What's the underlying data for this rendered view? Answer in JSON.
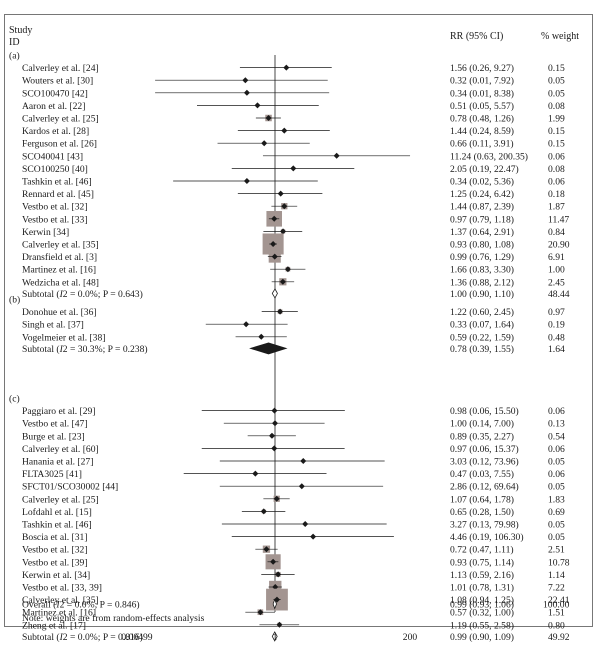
{
  "chart_data": {
    "type": "forest",
    "header": {
      "study": "Study",
      "id": "ID",
      "rr": "RR (95% CI)",
      "weight": "% weight"
    },
    "x_axis": {
      "scale": "log",
      "min": 0.00499,
      "max": 200,
      "ticks": [
        "0.00499",
        "1",
        "200"
      ]
    },
    "footnote": "Note: weights are from random-effects analysis",
    "groups": [
      {
        "label": "(a)",
        "studies": [
          {
            "name": "Calverley et al. [24]",
            "rr": 1.56,
            "lo": 0.26,
            "hi": 9.27,
            "ci": "1.56 (0.26, 9.27)",
            "weight": "0.15"
          },
          {
            "name": "Wouters et al. [30]",
            "rr": 0.32,
            "lo": 0.01,
            "hi": 7.92,
            "ci": "0.32 (0.01, 7.92)",
            "weight": "0.05"
          },
          {
            "name": "SCO100470 [42]",
            "rr": 0.34,
            "lo": 0.01,
            "hi": 8.38,
            "ci": "0.34 (0.01, 8.38)",
            "weight": "0.05"
          },
          {
            "name": "Aaron et al. [22]",
            "rr": 0.51,
            "lo": 0.05,
            "hi": 5.57,
            "ci": "0.51 (0.05, 5.57)",
            "weight": "0.08"
          },
          {
            "name": "Calverley et al. [25]",
            "rr": 0.78,
            "lo": 0.48,
            "hi": 1.26,
            "ci": "0.78 (0.48, 1.26)",
            "weight": "1.99"
          },
          {
            "name": "Kardos et al. [28]",
            "rr": 1.44,
            "lo": 0.24,
            "hi": 8.59,
            "ci": "1.44 (0.24, 8.59)",
            "weight": "0.15"
          },
          {
            "name": "Ferguson et al. [26]",
            "rr": 0.66,
            "lo": 0.11,
            "hi": 3.91,
            "ci": "0.66 (0.11, 3.91)",
            "weight": "0.15"
          },
          {
            "name": "SCO40041 [43]",
            "rr": 11.24,
            "lo": 0.63,
            "hi": 200.35,
            "ci": "11.24 (0.63, 200.35)",
            "weight": "0.06"
          },
          {
            "name": "SCO100250 [40]",
            "rr": 2.05,
            "lo": 0.19,
            "hi": 22.47,
            "ci": "2.05 (0.19, 22.47)",
            "weight": "0.08"
          },
          {
            "name": "Tashkin et al. [46]",
            "rr": 0.34,
            "lo": 0.02,
            "hi": 5.36,
            "ci": "0.34 (0.02, 5.36)",
            "weight": "0.06"
          },
          {
            "name": "Rennard et al. [45]",
            "rr": 1.25,
            "lo": 0.24,
            "hi": 6.42,
            "ci": "1.25 (0.24, 6.42)",
            "weight": "0.18"
          },
          {
            "name": "Vestbo et al. [32]",
            "rr": 1.44,
            "lo": 0.87,
            "hi": 2.39,
            "ci": "1.44 (0.87, 2.39)",
            "weight": "1.87"
          },
          {
            "name": "Vestbo et al. [33]",
            "rr": 0.97,
            "lo": 0.79,
            "hi": 1.18,
            "ci": "0.97 (0.79, 1.18)",
            "weight": "11.47"
          },
          {
            "name": "Kerwin [34]",
            "rr": 1.37,
            "lo": 0.64,
            "hi": 2.91,
            "ci": "1.37 (0.64, 2.91)",
            "weight": "0.84"
          },
          {
            "name": "Calverley et al. [35]",
            "rr": 0.93,
            "lo": 0.8,
            "hi": 1.08,
            "ci": "0.93 (0.80, 1.08)",
            "weight": "20.90"
          },
          {
            "name": "Dransfield et al. [3]",
            "rr": 0.99,
            "lo": 0.76,
            "hi": 1.29,
            "ci": "0.99 (0.76, 1.29)",
            "weight": "6.91"
          },
          {
            "name": "Martinez et al. [16]",
            "rr": 1.66,
            "lo": 0.83,
            "hi": 3.3,
            "ci": "1.66 (0.83, 3.30)",
            "weight": "1.00"
          },
          {
            "name": "Wedzicha et al. [48]",
            "rr": 1.36,
            "lo": 0.88,
            "hi": 2.12,
            "ci": "1.36 (0.88, 2.12)",
            "weight": "2.45"
          }
        ],
        "subtotal": {
          "label_pre": "Subtotal (",
          "i2": "I",
          "label_post": "2 = 0.0%; P = 0.643)",
          "rr": 1.0,
          "lo": 0.9,
          "hi": 1.1,
          "ci": "1.00 (0.90, 1.10)",
          "weight": "48.44",
          "fill": "none"
        }
      },
      {
        "label": "(b)",
        "studies": [
          {
            "name": "Donohue et al. [36]",
            "rr": 1.22,
            "lo": 0.6,
            "hi": 2.45,
            "ci": "1.22 (0.60, 2.45)",
            "weight": "0.97"
          },
          {
            "name": "Singh et al. [37]",
            "rr": 0.33,
            "lo": 0.07,
            "hi": 1.64,
            "ci": "0.33 (0.07, 1.64)",
            "weight": "0.19"
          },
          {
            "name": "Vogelmeier et al. [38]",
            "rr": 0.59,
            "lo": 0.22,
            "hi": 1.59,
            "ci": "0.59 (0.22, 1.59)",
            "weight": "0.48"
          }
        ],
        "subtotal": {
          "label_pre": "Subtotal (",
          "i2": "I",
          "label_post": "2 = 30.3%; P = 0.238)",
          "rr": 0.78,
          "lo": 0.39,
          "hi": 1.55,
          "ci": "0.78 (0.39, 1.55)",
          "weight": "1.64",
          "fill": "black"
        }
      },
      {
        "label": "(c)",
        "studies": [
          {
            "name": "Paggiaro et al. [29]",
            "rr": 0.98,
            "lo": 0.06,
            "hi": 15.5,
            "ci": "0.98 (0.06, 15.50)",
            "weight": "0.06"
          },
          {
            "name": "Vestbo et al. [47]",
            "rr": 1.0,
            "lo": 0.14,
            "hi": 7.0,
            "ci": "1.00 (0.14, 7.00)",
            "weight": "0.13"
          },
          {
            "name": "Burge et al. [23]",
            "rr": 0.89,
            "lo": 0.35,
            "hi": 2.27,
            "ci": "0.89 (0.35, 2.27)",
            "weight": "0.54"
          },
          {
            "name": "Calverley et al. [60]",
            "rr": 0.97,
            "lo": 0.06,
            "hi": 15.37,
            "ci": "0.97 (0.06, 15.37)",
            "weight": "0.06"
          },
          {
            "name": "Hanania et al. [27]",
            "rr": 3.03,
            "lo": 0.12,
            "hi": 73.96,
            "ci": "3.03 (0.12, 73.96)",
            "weight": "0.05"
          },
          {
            "name": "FLTA3025 [41]",
            "rr": 0.47,
            "lo": 0.03,
            "hi": 7.55,
            "ci": "0.47 (0.03, 7.55)",
            "weight": "0.06"
          },
          {
            "name": "SFCT01/SCO30002 [44]",
            "rr": 2.86,
            "lo": 0.12,
            "hi": 69.64,
            "ci": "2.86 (0.12, 69.64)",
            "weight": "0.05"
          },
          {
            "name": "Calverley et al. [25]",
            "rr": 1.07,
            "lo": 0.64,
            "hi": 1.78,
            "ci": "1.07 (0.64, 1.78)",
            "weight": "1.83"
          },
          {
            "name": "Lofdahl et al. [15]",
            "rr": 0.65,
            "lo": 0.28,
            "hi": 1.5,
            "ci": "0.65 (0.28, 1.50)",
            "weight": "0.69"
          },
          {
            "name": "Tashkin et al. [46]",
            "rr": 3.27,
            "lo": 0.13,
            "hi": 79.98,
            "ci": "3.27 (0.13, 79.98)",
            "weight": "0.05"
          },
          {
            "name": "Boscia et al. [31]",
            "rr": 4.46,
            "lo": 0.19,
            "hi": 106.3,
            "ci": "4.46 (0.19, 106.30)",
            "weight": "0.05"
          },
          {
            "name": "Vestbo et al. [32]",
            "rr": 0.72,
            "lo": 0.47,
            "hi": 1.11,
            "ci": "0.72 (0.47, 1.11)",
            "weight": "2.51"
          },
          {
            "name": "Vestbo et al. [39]",
            "rr": 0.93,
            "lo": 0.75,
            "hi": 1.14,
            "ci": "0.93 (0.75, 1.14)",
            "weight": "10.78"
          },
          {
            "name": "Kerwin et al. [34]",
            "rr": 1.13,
            "lo": 0.59,
            "hi": 2.16,
            "ci": "1.13 (0.59, 2.16)",
            "weight": "1.14"
          },
          {
            "name": "Vestbo et al. [33, 39]",
            "rr": 1.01,
            "lo": 0.78,
            "hi": 1.31,
            "ci": "1.01 (0.78, 1.31)",
            "weight": "7.22"
          },
          {
            "name": "Calverley et al. [35]",
            "rr": 1.08,
            "lo": 0.94,
            "hi": 1.25,
            "ci": "1.08 (0.94, 1.25)",
            "weight": "22.41"
          },
          {
            "name": "Martinez et al. [16]",
            "rr": 0.57,
            "lo": 0.32,
            "hi": 1.0,
            "ci": "0.57 (0.32, 1.00)",
            "weight": "1.51"
          },
          {
            "name": "Zheng et al. [17]",
            "rr": 1.19,
            "lo": 0.55,
            "hi": 2.58,
            "ci": "1.19 (0.55, 2.58)",
            "weight": "0.80"
          }
        ],
        "subtotal": {
          "label_pre": "Subtotal (",
          "i2": "I",
          "label_post": "2 = 0.0%; P = 0.816)",
          "rr": 0.99,
          "lo": 0.9,
          "hi": 1.09,
          "ci": "0.99 (0.90, 1.09)",
          "weight": "49.92",
          "fill": "none"
        }
      }
    ],
    "overall": {
      "label_pre": "Overall (",
      "i2": "I",
      "label_post": "2 = 0.0%; P = 0.846)",
      "rr": 0.99,
      "lo": 0.93,
      "hi": 1.06,
      "ci": "0.99 (0.93, 1.06)",
      "weight": "100.00",
      "fill": "none"
    },
    "colors": {
      "box": "#a39591",
      "line": "#1a1a1a",
      "border": "#555555"
    }
  }
}
